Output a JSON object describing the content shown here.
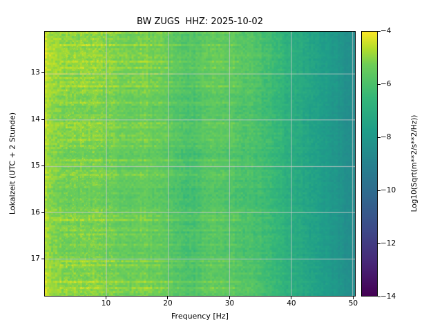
{
  "title": "BW ZUGS  HHZ: 2025-10-02",
  "x_axis": {
    "label": "Frequency [Hz]",
    "ticks": [
      {
        "value": 10,
        "label": "10"
      },
      {
        "value": 20,
        "label": "20"
      },
      {
        "value": 30,
        "label": "30"
      },
      {
        "value": 40,
        "label": "40"
      },
      {
        "value": 50,
        "label": "50"
      }
    ]
  },
  "y_axis": {
    "label": "Lokalzeit (UTC + 2 Stunde)",
    "ticks": [
      {
        "value": 13,
        "label": "13"
      },
      {
        "value": 14,
        "label": "14"
      },
      {
        "value": 15,
        "label": "15"
      },
      {
        "value": 16,
        "label": "16"
      },
      {
        "value": 17,
        "label": "17"
      }
    ]
  },
  "colorbar": {
    "label": "Log10(Sqrt(m**2/s**2/Hz))",
    "vmin": -14,
    "vmax": -4,
    "ticks": [
      {
        "value": -4,
        "label": "−4"
      },
      {
        "value": -6,
        "label": "−6"
      },
      {
        "value": -8,
        "label": "−8"
      },
      {
        "value": -10,
        "label": "−10"
      },
      {
        "value": -12,
        "label": "−12"
      },
      {
        "value": -14,
        "label": "−14"
      }
    ]
  },
  "chart_data": {
    "type": "heatmap",
    "title": "BW ZUGS  HHZ: 2025-10-02",
    "xlabel": "Frequency [Hz]",
    "ylabel": "Lokalzeit (UTC + 2 Stunde)",
    "value_label": "Log10(Sqrt(m**2/s**2/Hz))",
    "xlim": [
      0,
      50.4
    ],
    "ylim_top": 12.1,
    "ylim_bottom": 17.8,
    "grid": true,
    "colormap": "viridis",
    "colormap_stops": [
      [
        0.0,
        "#440154"
      ],
      [
        0.125,
        "#482878"
      ],
      [
        0.25,
        "#3e4a89"
      ],
      [
        0.375,
        "#31688e"
      ],
      [
        0.5,
        "#26828e"
      ],
      [
        0.625,
        "#1f9e89"
      ],
      [
        0.75,
        "#35b779"
      ],
      [
        0.875,
        "#6ece58"
      ],
      [
        0.9375,
        "#b5de2b"
      ],
      [
        1.0,
        "#fde725"
      ]
    ],
    "freq_bins": [
      0,
      2,
      4,
      6,
      8,
      10,
      12,
      14,
      16,
      18,
      20,
      22,
      24,
      26,
      28,
      30,
      32,
      34,
      36,
      38,
      40,
      42,
      44,
      46,
      48,
      50
    ],
    "time_bins": [
      12.3,
      12.8,
      13.3,
      13.7,
      14.2,
      14.7,
      15.2,
      15.6,
      16.1,
      16.6,
      17.1,
      17.5
    ],
    "values": [
      [
        -4.5,
        -4.9,
        -5.1,
        -5.0,
        -5.0,
        -5.1,
        -5.2,
        -5.2,
        -5.1,
        -5.3,
        -5.5,
        -5.7,
        -5.9,
        -5.5,
        -5.5,
        -5.6,
        -5.7,
        -5.8,
        -6.2,
        -6.5,
        -6.9,
        -7.2,
        -7.5,
        -7.8,
        -8.1,
        -8.5
      ],
      [
        -4.4,
        -4.8,
        -5.0,
        -4.9,
        -4.9,
        -5.0,
        -5.1,
        -5.1,
        -5.0,
        -5.2,
        -5.4,
        -5.6,
        -5.8,
        -5.4,
        -5.4,
        -5.5,
        -5.6,
        -5.7,
        -6.1,
        -6.4,
        -6.8,
        -7.2,
        -7.5,
        -7.8,
        -8.1,
        -8.5
      ],
      [
        -4.5,
        -4.9,
        -5.1,
        -5.0,
        -5.0,
        -5.1,
        -5.2,
        -5.2,
        -5.1,
        -5.3,
        -5.5,
        -5.7,
        -5.9,
        -5.5,
        -5.5,
        -5.6,
        -5.7,
        -5.8,
        -6.2,
        -6.5,
        -6.9,
        -7.2,
        -7.5,
        -7.8,
        -8.1,
        -8.5
      ],
      [
        -4.7,
        -5.1,
        -5.3,
        -5.2,
        -5.2,
        -5.3,
        -5.4,
        -5.4,
        -5.3,
        -5.5,
        -5.7,
        -5.9,
        -6.1,
        -5.7,
        -5.7,
        -5.8,
        -5.9,
        -6.0,
        -6.3,
        -6.6,
        -7.0,
        -7.3,
        -7.6,
        -7.9,
        -8.2,
        -8.6
      ],
      [
        -4.6,
        -5.0,
        -5.2,
        -5.1,
        -5.1,
        -5.2,
        -5.3,
        -5.3,
        -5.2,
        -5.4,
        -5.6,
        -5.8,
        -6.0,
        -5.6,
        -5.6,
        -5.7,
        -5.8,
        -5.9,
        -6.2,
        -6.5,
        -6.9,
        -7.3,
        -7.6,
        -7.9,
        -8.2,
        -8.6
      ],
      [
        -4.8,
        -5.2,
        -5.4,
        -5.3,
        -5.3,
        -5.4,
        -5.5,
        -5.5,
        -5.4,
        -5.6,
        -5.8,
        -6.0,
        -6.2,
        -5.8,
        -5.8,
        -5.9,
        -6.0,
        -6.1,
        -6.3,
        -6.6,
        -7.0,
        -7.3,
        -7.6,
        -7.9,
        -8.2,
        -8.6
      ],
      [
        -4.7,
        -5.1,
        -5.3,
        -5.2,
        -5.2,
        -5.3,
        -5.4,
        -5.4,
        -5.3,
        -5.5,
        -5.7,
        -5.9,
        -6.1,
        -5.7,
        -5.7,
        -5.8,
        -5.9,
        -6.0,
        -6.3,
        -6.6,
        -7.0,
        -7.3,
        -7.6,
        -7.9,
        -8.2,
        -8.6
      ],
      [
        -4.9,
        -5.3,
        -5.5,
        -5.4,
        -5.4,
        -5.5,
        -5.6,
        -5.6,
        -5.5,
        -5.7,
        -5.9,
        -6.1,
        -6.3,
        -5.9,
        -5.9,
        -6.0,
        -6.1,
        -6.2,
        -6.4,
        -6.7,
        -7.1,
        -7.3,
        -7.6,
        -7.9,
        -8.2,
        -8.6
      ],
      [
        -4.7,
        -5.1,
        -5.3,
        -5.2,
        -5.2,
        -5.3,
        -5.4,
        -5.4,
        -5.3,
        -5.5,
        -5.7,
        -5.9,
        -6.1,
        -5.7,
        -5.7,
        -5.8,
        -5.9,
        -6.0,
        -6.3,
        -6.6,
        -7.0,
        -7.3,
        -7.6,
        -7.9,
        -8.2,
        -8.6
      ],
      [
        -4.8,
        -5.2,
        -5.4,
        -5.3,
        -5.3,
        -5.4,
        -5.5,
        -5.5,
        -5.4,
        -5.6,
        -5.8,
        -6.0,
        -6.2,
        -5.8,
        -5.8,
        -5.9,
        -6.0,
        -6.1,
        -6.3,
        -6.6,
        -7.0,
        -7.3,
        -7.6,
        -7.9,
        -8.2,
        -8.6
      ],
      [
        -4.7,
        -5.1,
        -5.3,
        -5.2,
        -5.2,
        -5.3,
        -5.4,
        -5.4,
        -5.3,
        -5.5,
        -5.7,
        -5.9,
        -6.1,
        -5.7,
        -5.7,
        -5.8,
        -5.9,
        -6.0,
        -6.3,
        -6.6,
        -7.0,
        -7.3,
        -7.6,
        -7.9,
        -8.2,
        -8.6
      ],
      [
        -4.5,
        -4.9,
        -5.1,
        -5.0,
        -5.0,
        -5.1,
        -5.2,
        -5.2,
        -5.1,
        -5.3,
        -5.5,
        -5.7,
        -5.9,
        -5.5,
        -5.5,
        -5.6,
        -5.7,
        -5.8,
        -6.2,
        -6.5,
        -6.9,
        -7.2,
        -7.5,
        -7.8,
        -8.1,
        -8.5
      ]
    ]
  }
}
